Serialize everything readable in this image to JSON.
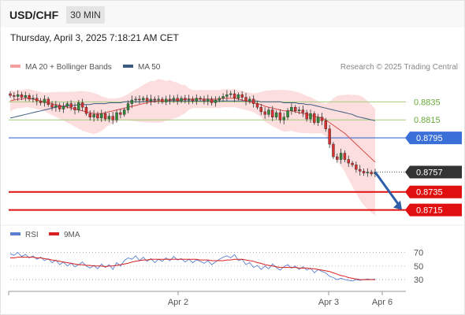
{
  "header": {
    "symbol": "USD/CHF",
    "timeframe": "30 MIN",
    "datetime": "Thursday, April 3, 2025 7:18:21 AM CET"
  },
  "legend": {
    "ma20_label": "MA 20 + Bollinger Bands",
    "ma50_label": "MA 50",
    "research": "Research © 2025 Trading Central",
    "rsi_label": "RSI",
    "ma9_label": "9MA"
  },
  "colors": {
    "bollinger": "#f5a0a0",
    "ma20": "#d54a4a",
    "ma50": "#3d5a80",
    "bull_candle": "#2f8a3a",
    "bear_candle": "#d93030",
    "pivot_line": "#3a6fd8",
    "support_line": "#e01010",
    "resistance_line": "#a4cc7c",
    "price_tag": "#333333",
    "arrow": "#2f5ea8",
    "rsi": "#5a7fd0",
    "rsi_ma": "#d92020"
  },
  "chart_data": [
    {
      "type": "candlestick",
      "ylim": [
        0.8705,
        0.8865
      ],
      "x_ticks": [
        "Apr 2",
        "Apr 3",
        "Apr 6"
      ],
      "levels": [
        {
          "value": 0.8835,
          "label": "0.8835",
          "kind": "resistance"
        },
        {
          "value": 0.8815,
          "label": "0.8815",
          "kind": "resistance"
        },
        {
          "value": 0.8795,
          "label": "0.8795",
          "kind": "pivot"
        },
        {
          "value": 0.8735,
          "label": "0.8735",
          "kind": "support"
        },
        {
          "value": 0.8715,
          "label": "0.8715",
          "kind": "support"
        }
      ],
      "last_price": {
        "value": 0.8757,
        "label": "0.8757"
      },
      "forecast_arrow": {
        "from": 0.8757,
        "to": 0.8715
      },
      "close": [
        0.8842,
        0.8841,
        0.8843,
        0.884,
        0.8842,
        0.8838,
        0.8839,
        0.8836,
        0.8834,
        0.8838,
        0.8832,
        0.8829,
        0.8831,
        0.8827,
        0.883,
        0.8833,
        0.8829,
        0.8826,
        0.8834,
        0.8829,
        0.8822,
        0.8818,
        0.8821,
        0.8817,
        0.8822,
        0.8816,
        0.8819,
        0.8815,
        0.8823,
        0.8821,
        0.8826,
        0.8833,
        0.8837,
        0.8838,
        0.8837,
        0.8839,
        0.8836,
        0.8838,
        0.8837,
        0.8838,
        0.8835,
        0.8838,
        0.8837,
        0.8839,
        0.8836,
        0.8839,
        0.8837,
        0.8838,
        0.8836,
        0.8839,
        0.8838,
        0.8836,
        0.8838,
        0.8834,
        0.8837,
        0.8839,
        0.8841,
        0.8843,
        0.8844,
        0.8839,
        0.8843,
        0.884,
        0.8836,
        0.8838,
        0.8833,
        0.8829,
        0.8824,
        0.8821,
        0.8826,
        0.8818,
        0.8823,
        0.8815,
        0.8818,
        0.8825,
        0.8829,
        0.8825,
        0.8826,
        0.8823,
        0.8816,
        0.8822,
        0.8812,
        0.8818,
        0.8814,
        0.8805,
        0.8788,
        0.8774,
        0.8771,
        0.8778,
        0.8771,
        0.8767,
        0.8765,
        0.876,
        0.8758,
        0.8756,
        0.8757,
        0.8755,
        0.8757
      ],
      "ma20": [
        0.8836,
        0.8837,
        0.8838,
        0.8838,
        0.8839,
        0.8839,
        0.8838,
        0.8837,
        0.8836,
        0.8835,
        0.8834,
        0.8833,
        0.8832,
        0.8831,
        0.883,
        0.8829,
        0.8828,
        0.8827,
        0.8826,
        0.8825,
        0.8824,
        0.8823,
        0.8822,
        0.8822,
        0.8822,
        0.8823,
        0.8824,
        0.8825,
        0.8826,
        0.8827,
        0.8828,
        0.8829,
        0.883,
        0.8831,
        0.8832,
        0.8833,
        0.8834,
        0.8835,
        0.8835,
        0.8836,
        0.8836,
        0.8836,
        0.8837,
        0.8837,
        0.8837,
        0.8837,
        0.8838,
        0.8838,
        0.8838,
        0.8838,
        0.8838,
        0.8838,
        0.8838,
        0.8838,
        0.8838,
        0.8838,
        0.8839,
        0.8839,
        0.8839,
        0.8839,
        0.8838,
        0.8837,
        0.8836,
        0.8835,
        0.8834,
        0.8833,
        0.8832,
        0.883,
        0.8829,
        0.8828,
        0.8827,
        0.8826,
        0.8825,
        0.8825,
        0.8825,
        0.8824,
        0.8823,
        0.8822,
        0.8821,
        0.882,
        0.8819,
        0.8818,
        0.8817,
        0.8815,
        0.8812,
        0.8809,
        0.8806,
        0.8803,
        0.88,
        0.8796,
        0.8792,
        0.8788,
        0.8784,
        0.878,
        0.8776,
        0.8772,
        0.8768
      ],
      "ma50": [
        0.8817,
        0.8818,
        0.8819,
        0.882,
        0.8821,
        0.8822,
        0.8823,
        0.8824,
        0.8825,
        0.8826,
        0.8827,
        0.8828,
        0.8829,
        0.883,
        0.883,
        0.8831,
        0.8831,
        0.8831,
        0.8832,
        0.8832,
        0.8832,
        0.8832,
        0.8833,
        0.8833,
        0.8833,
        0.8833,
        0.8834,
        0.8834,
        0.8834,
        0.8834,
        0.8835,
        0.8835,
        0.8835,
        0.8835,
        0.8835,
        0.8835,
        0.8836,
        0.8836,
        0.8836,
        0.8836,
        0.8836,
        0.8836,
        0.8836,
        0.8836,
        0.8836,
        0.8836,
        0.8836,
        0.8836,
        0.8836,
        0.8836,
        0.8836,
        0.8836,
        0.8836,
        0.8836,
        0.8836,
        0.8836,
        0.8836,
        0.8836,
        0.8836,
        0.8836,
        0.8836,
        0.8836,
        0.8836,
        0.8836,
        0.8836,
        0.8836,
        0.8835,
        0.8835,
        0.8835,
        0.8835,
        0.8835,
        0.8835,
        0.8834,
        0.8834,
        0.8834,
        0.8834,
        0.8833,
        0.8833,
        0.8832,
        0.8832,
        0.8831,
        0.883,
        0.8829,
        0.8828,
        0.8827,
        0.8826,
        0.8825,
        0.8824,
        0.8823,
        0.8822,
        0.8821,
        0.8819,
        0.8818,
        0.8817,
        0.8816,
        0.8815,
        0.8814
      ]
    },
    {
      "type": "line",
      "ylim": [
        15,
        80
      ],
      "y_ticks": [
        "70",
        "50",
        "30"
      ],
      "rsi": [
        68,
        66,
        70,
        64,
        67,
        62,
        65,
        60,
        63,
        58,
        61,
        55,
        59,
        52,
        56,
        50,
        54,
        49,
        52,
        56,
        50,
        47,
        51,
        46,
        53,
        48,
        52,
        45,
        55,
        50,
        58,
        62,
        60,
        65,
        58,
        63,
        57,
        61,
        55,
        60,
        57,
        62,
        58,
        64,
        59,
        61,
        56,
        60,
        55,
        59,
        57,
        54,
        58,
        52,
        56,
        60,
        63,
        65,
        62,
        67,
        58,
        60,
        52,
        55,
        48,
        51,
        45,
        50,
        46,
        53,
        48,
        44,
        49,
        52,
        47,
        50,
        45,
        49,
        44,
        47,
        40,
        45,
        42,
        40,
        35,
        33,
        30,
        32,
        30,
        29,
        28,
        30,
        29,
        30,
        31,
        30,
        31
      ],
      "ma9": [
        62,
        62,
        63,
        63,
        63,
        63,
        63,
        62,
        62,
        61,
        60,
        59,
        58,
        57,
        56,
        55,
        54,
        53,
        52,
        52,
        51,
        51,
        50,
        50,
        50,
        49,
        50,
        50,
        51,
        52,
        53,
        54,
        56,
        57,
        58,
        59,
        59,
        60,
        60,
        60,
        60,
        60,
        60,
        60,
        60,
        60,
        60,
        60,
        60,
        60,
        59,
        59,
        59,
        58,
        58,
        58,
        58,
        59,
        59,
        60,
        60,
        60,
        59,
        58,
        57,
        55,
        54,
        52,
        51,
        50,
        49,
        48,
        48,
        48,
        48,
        48,
        47,
        47,
        47,
        46,
        46,
        45,
        44,
        43,
        42,
        40,
        38,
        36,
        35,
        33,
        32,
        31,
        30,
        30,
        30,
        30,
        30
      ]
    }
  ]
}
